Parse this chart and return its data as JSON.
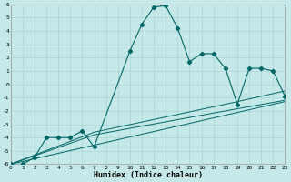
{
  "xlabel": "Humidex (Indice chaleur)",
  "xlim": [
    0,
    23
  ],
  "ylim": [
    -6,
    6
  ],
  "background_color": "#c5e8e8",
  "line_color": "#006666",
  "grid_color": "#aad4d4",
  "curve_x": [
    0,
    1,
    2,
    3,
    4,
    5,
    6,
    7,
    10,
    11,
    12,
    13,
    14,
    15,
    16,
    17,
    18,
    19,
    20,
    21,
    22,
    23
  ],
  "curve_y": [
    -6,
    -6,
    -5.5,
    -4.0,
    -4.0,
    -4.0,
    -3.5,
    -4.7,
    2.5,
    4.5,
    5.8,
    5.9,
    4.2,
    1.7,
    2.3,
    2.3,
    1.2,
    -1.5,
    1.2,
    1.2,
    1.0,
    -0.9
  ],
  "line1_x": [
    0,
    23
  ],
  "line1_y": [
    -6,
    -1.3
  ],
  "line2_x": [
    0,
    7,
    18,
    23
  ],
  "line2_y": [
    -6,
    -3.6,
    -1.5,
    -0.5
  ],
  "line3_x": [
    0,
    7,
    18,
    23
  ],
  "line3_y": [
    -6,
    -3.8,
    -2.0,
    -1.2
  ]
}
